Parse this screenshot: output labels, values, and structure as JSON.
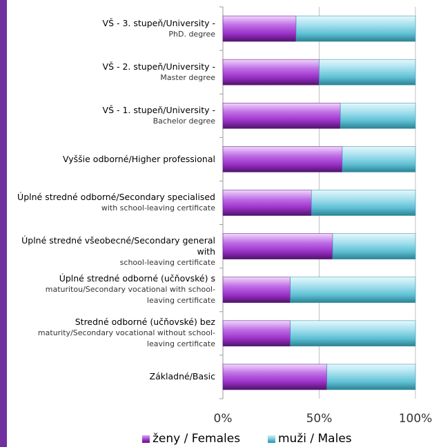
{
  "chart_data": {
    "type": "bar",
    "orientation": "horizontal",
    "stacked": "percent",
    "categories": [
      [
        "VŠ - 3. stupeň/University -",
        "PhD. degree"
      ],
      [
        "VŠ - 2. stupeň/University -",
        "Master degree"
      ],
      [
        "VŠ - 1. stupeň/University -",
        "Bachelor degree"
      ],
      [
        "Vyššie odborné/Higher professional"
      ],
      [
        "Úplné stredné odborné/Secondary specialised",
        "with school-leaving certificate"
      ],
      [
        "Úplné stredné všeobecné/Secondary general with",
        "school-leaving certificate"
      ],
      [
        "Úplné stredné odborné (učňovské) s",
        "maturitou/Secondary vocational with school-",
        "leaving certificate"
      ],
      [
        "Stredné odborné (učňovské) bez",
        "maturity/Secondary vocational without school-",
        "leaving certificate"
      ],
      [
        "Základné/Basic"
      ]
    ],
    "series": [
      {
        "name": "ženy / Females",
        "color": "#9b30c8",
        "values": [
          38,
          50,
          61,
          62,
          46,
          57,
          35,
          35,
          54
        ]
      },
      {
        "name": "muži / Males",
        "color": "#4fb3c8",
        "values": [
          62,
          50,
          39,
          38,
          54,
          43,
          65,
          65,
          46
        ]
      }
    ],
    "xlim": [
      0,
      100
    ],
    "x_ticks": [
      "0%",
      "50%",
      "100%"
    ],
    "grid": true,
    "legend_position": "bottom"
  },
  "colors": {
    "accent": "#7030a0",
    "females": "#9b30c8",
    "males": "#4fb3c8"
  }
}
